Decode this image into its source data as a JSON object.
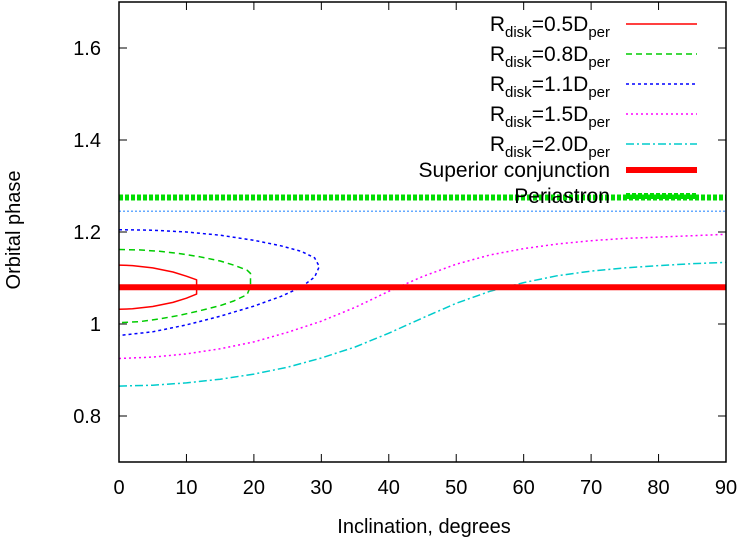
{
  "chart_data": {
    "type": "line",
    "title": "",
    "xlabel": "Inclination, degrees",
    "ylabel": "Orbital phase",
    "xlim": [
      0,
      90
    ],
    "ylim": [
      0.7,
      1.7
    ],
    "grid": false,
    "legend_position": "top-right",
    "x_ticks": [
      "0",
      "10",
      "20",
      "30",
      "40",
      "50",
      "60",
      "70",
      "80",
      "90"
    ],
    "y_ticks": [
      "0.8",
      "1",
      "1.2",
      "1.4",
      "1.6"
    ],
    "series": [
      {
        "name": "R_disk=0.5D_per",
        "legend": {
          "base": "R",
          "sub1": "disk",
          "mid": "=0.5D",
          "sub2": "per"
        },
        "color": "#ff0000",
        "dash": "solid",
        "width": 1.5,
        "x": [
          0,
          2,
          5,
          8,
          10,
          11.5,
          11.5,
          10,
          8,
          5,
          2,
          0
        ],
        "y": [
          1.128,
          1.127,
          1.122,
          1.113,
          1.104,
          1.096,
          1.065,
          1.056,
          1.047,
          1.038,
          1.033,
          1.032
        ]
      },
      {
        "name": "R_disk=0.8D_per",
        "legend": {
          "base": "R",
          "sub1": "disk",
          "mid": "=0.8D",
          "sub2": "per"
        },
        "color": "#00cc00",
        "dash": "6,4",
        "width": 1.5,
        "x": [
          0,
          3,
          6,
          9,
          12,
          15,
          17,
          19,
          19.5,
          19.5,
          19,
          17,
          15,
          12,
          9,
          6,
          3,
          0
        ],
        "y": [
          1.162,
          1.161,
          1.158,
          1.153,
          1.146,
          1.137,
          1.128,
          1.117,
          1.11,
          1.082,
          1.064,
          1.05,
          1.04,
          1.029,
          1.019,
          1.011,
          1.005,
          1.003
        ]
      },
      {
        "name": "R_disk=1.1D_per",
        "legend": {
          "base": "R",
          "sub1": "disk",
          "mid": "=1.1D",
          "sub2": "per"
        },
        "color": "#0000ff",
        "dash": "3,3",
        "width": 1.5,
        "x": [
          0,
          5,
          10,
          15,
          20,
          24,
          27,
          29,
          29.7,
          29,
          27,
          24,
          20,
          15,
          10,
          5,
          0
        ],
        "y": [
          1.205,
          1.204,
          1.2,
          1.193,
          1.182,
          1.17,
          1.158,
          1.144,
          1.125,
          1.102,
          1.08,
          1.06,
          1.039,
          1.017,
          0.998,
          0.983,
          0.975
        ]
      },
      {
        "name": "R_disk=1.5D_per",
        "legend": {
          "base": "R",
          "sub1": "disk",
          "mid": "=1.5D",
          "sub2": "per"
        },
        "color": "#ff00ff",
        "dash": "2,3",
        "width": 1.5,
        "x": [
          0,
          5,
          10,
          15,
          20,
          25,
          30,
          35,
          40,
          45,
          50,
          55,
          60,
          65,
          70,
          75,
          80,
          85,
          90
        ],
        "y": [
          0.925,
          0.928,
          0.935,
          0.946,
          0.961,
          0.982,
          1.006,
          1.036,
          1.071,
          1.103,
          1.13,
          1.15,
          1.164,
          1.174,
          1.181,
          1.186,
          1.189,
          1.192,
          1.195
        ]
      },
      {
        "name": "R_disk=2.0D_per",
        "legend": {
          "base": "R",
          "sub1": "disk",
          "mid": "=2.0D",
          "sub2": "per"
        },
        "color": "#00cccc",
        "dash": "8,3,2,3",
        "width": 1.5,
        "x": [
          0,
          5,
          10,
          15,
          20,
          25,
          30,
          35,
          40,
          45,
          50,
          55,
          60,
          65,
          70,
          75,
          80,
          85,
          90
        ],
        "y": [
          0.865,
          0.867,
          0.872,
          0.88,
          0.891,
          0.906,
          0.926,
          0.95,
          0.98,
          1.013,
          1.045,
          1.071,
          1.09,
          1.105,
          1.115,
          1.122,
          1.127,
          1.131,
          1.134
        ]
      },
      {
        "name": "Superior conjunction",
        "legend": {
          "base": "Superior conjunction",
          "sub1": "",
          "mid": "",
          "sub2": ""
        },
        "color": "#ff0000",
        "dash": "solid",
        "width": 6,
        "x": [
          0,
          90
        ],
        "y": [
          1.08,
          1.08
        ]
      },
      {
        "name": "Periastron",
        "legend": {
          "base": "Periastron",
          "sub1": "",
          "mid": "",
          "sub2": ""
        },
        "color": "#00dd00",
        "dash": "4,2",
        "width": 6,
        "x": [
          0,
          90
        ],
        "y": [
          1.275,
          1.275
        ]
      }
    ],
    "extra_lines": [
      {
        "name": "unlabeled-light-blue-reference",
        "color": "#66aaff",
        "dash": "2,2",
        "width": 1.5,
        "x": [
          0,
          90
        ],
        "y": [
          1.245,
          1.245
        ]
      }
    ]
  }
}
